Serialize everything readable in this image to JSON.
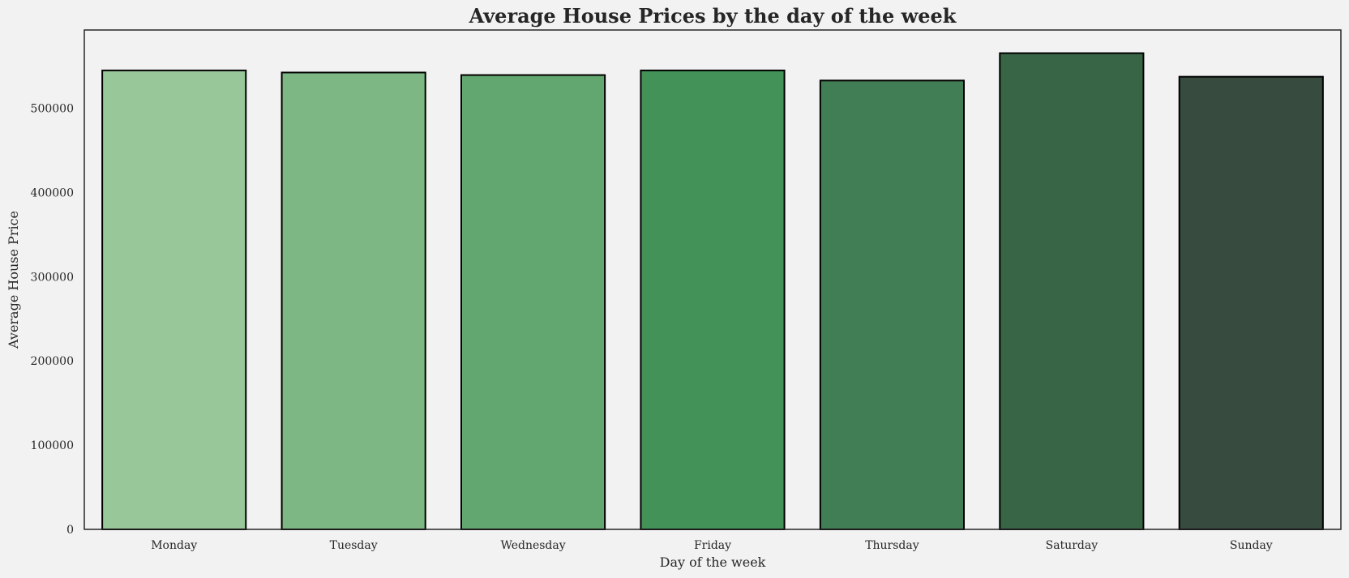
{
  "chart_data": {
    "type": "bar",
    "title": "Average House Prices by the day of the week",
    "xlabel": "Day of the week",
    "ylabel": "Average House Price",
    "categories": [
      "Monday",
      "Tuesday",
      "Wednesday",
      "Friday",
      "Thursday",
      "Saturday",
      "Sunday"
    ],
    "values": [
      545000,
      542500,
      539500,
      545000,
      533000,
      565500,
      537500
    ],
    "colors": [
      "#98c799",
      "#7db784",
      "#63a770",
      "#439359",
      "#427e55",
      "#396547",
      "#374b3f"
    ],
    "ylim": [
      0,
      593000
    ],
    "yticks": [
      0,
      100000,
      200000,
      300000,
      400000,
      500000
    ],
    "ytick_labels": [
      "0",
      "100000",
      "200000",
      "300000",
      "400000",
      "500000"
    ],
    "grid": false,
    "legend": "none",
    "bar_edge_color": "#000000",
    "background_color": "#f2f2f2"
  }
}
